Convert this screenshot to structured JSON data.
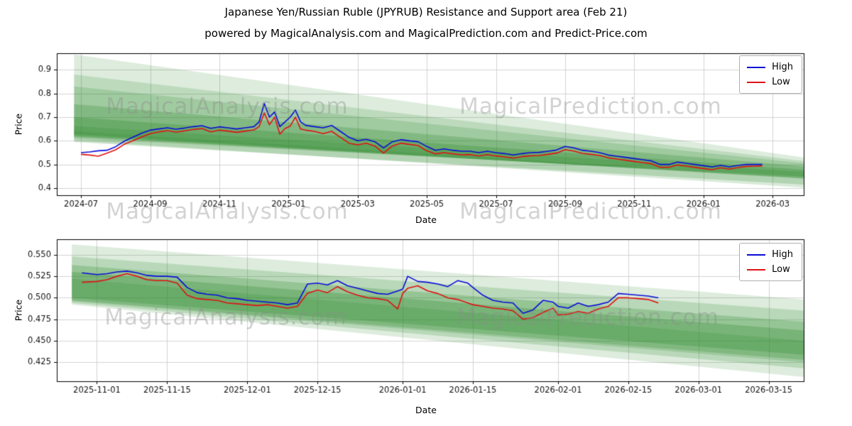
{
  "watermarks": {
    "left": "MagicalAnalysis.com",
    "right": "MagicalPrediction.com"
  },
  "colors": {
    "high": "#0b0bd8",
    "low": "#e01212",
    "band": "#2d8a2d",
    "grid": "#d3d3d3",
    "spine": "#000000"
  },
  "chart_data": [
    {
      "type": "line",
      "title": "Japanese Yen/Russian Ruble (JPYRUB) Resistance and Support area (Feb 21)",
      "subtitle": "powered by MagicalAnalysis.com and MagicalPrediction.com and Predict-Price.com",
      "xlabel": "Date",
      "ylabel": "Price",
      "legend_position": "upper right",
      "grid": true,
      "xlim": [
        -0.7,
        20.9
      ],
      "ylim": [
        0.37,
        0.97
      ],
      "xticks": [
        {
          "v": 0,
          "label": "2024-07"
        },
        {
          "v": 2,
          "label": "2024-09"
        },
        {
          "v": 4,
          "label": "2024-11"
        },
        {
          "v": 6,
          "label": "2025-01"
        },
        {
          "v": 8,
          "label": "2025-03"
        },
        {
          "v": 10,
          "label": "2025-05"
        },
        {
          "v": 12,
          "label": "2025-07"
        },
        {
          "v": 14,
          "label": "2025-09"
        },
        {
          "v": 16,
          "label": "2025-11"
        },
        {
          "v": 18,
          "label": "2026-01"
        },
        {
          "v": 20,
          "label": "2026-03"
        }
      ],
      "yticks": [
        {
          "v": 0.4,
          "label": "0.4"
        },
        {
          "v": 0.5,
          "label": "0.5"
        },
        {
          "v": 0.6,
          "label": "0.6"
        },
        {
          "v": 0.7,
          "label": "0.7"
        },
        {
          "v": 0.8,
          "label": "0.8"
        },
        {
          "v": 0.9,
          "label": "0.9"
        }
      ],
      "x": [
        0,
        0.25,
        0.5,
        0.75,
        1,
        1.25,
        1.5,
        1.75,
        2,
        2.25,
        2.5,
        2.75,
        3,
        3.25,
        3.5,
        3.75,
        4,
        4.25,
        4.5,
        4.75,
        5,
        5.15,
        5.3,
        5.45,
        5.6,
        5.75,
        5.9,
        6.05,
        6.2,
        6.35,
        6.5,
        6.75,
        7,
        7.25,
        7.5,
        7.75,
        8,
        8.25,
        8.5,
        8.75,
        9,
        9.25,
        9.5,
        9.75,
        10,
        10.25,
        10.5,
        10.75,
        11,
        11.25,
        11.5,
        11.75,
        12,
        12.25,
        12.5,
        12.75,
        13,
        13.25,
        13.5,
        13.75,
        14,
        14.25,
        14.5,
        14.75,
        15,
        15.25,
        15.5,
        15.75,
        16,
        16.25,
        16.5,
        16.75,
        17,
        17.25,
        17.5,
        17.75,
        18,
        18.25,
        18.5,
        18.75,
        19,
        19.25,
        19.5,
        19.7
      ],
      "series": [
        {
          "name": "High",
          "color": "#0b0bd8",
          "values": [
            0.55,
            0.553,
            0.558,
            0.56,
            0.575,
            0.598,
            0.615,
            0.632,
            0.645,
            0.65,
            0.655,
            0.649,
            0.654,
            0.66,
            0.664,
            0.653,
            0.659,
            0.655,
            0.65,
            0.655,
            0.66,
            0.68,
            0.758,
            0.7,
            0.722,
            0.66,
            0.68,
            0.7,
            0.73,
            0.68,
            0.665,
            0.66,
            0.655,
            0.665,
            0.64,
            0.615,
            0.6,
            0.606,
            0.596,
            0.57,
            0.596,
            0.605,
            0.6,
            0.596,
            0.576,
            0.56,
            0.566,
            0.56,
            0.556,
            0.556,
            0.55,
            0.556,
            0.55,
            0.546,
            0.54,
            0.546,
            0.55,
            0.551,
            0.556,
            0.561,
            0.576,
            0.57,
            0.56,
            0.556,
            0.55,
            0.54,
            0.535,
            0.53,
            0.525,
            0.52,
            0.515,
            0.5,
            0.5,
            0.51,
            0.505,
            0.5,
            0.495,
            0.49,
            0.496,
            0.49,
            0.496,
            0.5,
            0.5,
            0.5
          ]
        },
        {
          "name": "Low",
          "color": "#e01212",
          "values": [
            0.543,
            0.54,
            0.535,
            0.548,
            0.562,
            0.585,
            0.6,
            0.616,
            0.63,
            0.638,
            0.643,
            0.637,
            0.642,
            0.648,
            0.652,
            0.638,
            0.645,
            0.641,
            0.636,
            0.641,
            0.646,
            0.66,
            0.718,
            0.668,
            0.7,
            0.628,
            0.652,
            0.662,
            0.7,
            0.65,
            0.645,
            0.64,
            0.63,
            0.64,
            0.615,
            0.59,
            0.583,
            0.59,
            0.578,
            0.548,
            0.578,
            0.59,
            0.585,
            0.58,
            0.558,
            0.545,
            0.55,
            0.545,
            0.541,
            0.542,
            0.536,
            0.542,
            0.536,
            0.532,
            0.527,
            0.533,
            0.537,
            0.538,
            0.543,
            0.548,
            0.563,
            0.557,
            0.547,
            0.543,
            0.538,
            0.528,
            0.523,
            0.518,
            0.513,
            0.508,
            0.503,
            0.488,
            0.488,
            0.498,
            0.493,
            0.488,
            0.483,
            0.478,
            0.486,
            0.48,
            0.487,
            0.492,
            0.493,
            0.494
          ]
        }
      ],
      "bands": [
        {
          "x0": -0.2,
          "top0": 0.965,
          "bot0": 0.61,
          "x1": 20.9,
          "top1": 0.53,
          "bot1": 0.45,
          "alpha": 0.16
        },
        {
          "x0": -0.2,
          "top0": 0.88,
          "bot0": 0.615,
          "x1": 20.9,
          "top1": 0.515,
          "bot1": 0.448,
          "alpha": 0.18
        },
        {
          "x0": -0.2,
          "top0": 0.83,
          "bot0": 0.618,
          "x1": 20.9,
          "top1": 0.505,
          "bot1": 0.445,
          "alpha": 0.2
        },
        {
          "x0": -0.2,
          "top0": 0.755,
          "bot0": 0.622,
          "x1": 20.9,
          "top1": 0.492,
          "bot1": 0.443,
          "alpha": 0.26
        },
        {
          "x0": -0.2,
          "top0": 0.7,
          "bot0": 0.628,
          "x1": 20.9,
          "top1": 0.478,
          "bot1": 0.44,
          "alpha": 0.28
        },
        {
          "x0": -0.2,
          "top0": 0.662,
          "bot0": 0.595,
          "x1": 20.9,
          "top1": 0.468,
          "bot1": 0.415,
          "alpha": 0.22
        },
        {
          "x0": -0.2,
          "top0": 0.64,
          "bot0": 0.602,
          "x1": 20.9,
          "top1": 0.445,
          "bot1": 0.402,
          "alpha": 0.18
        }
      ]
    },
    {
      "type": "line",
      "title": "",
      "xlabel": "Date",
      "ylabel": "Price",
      "legend_position": "upper right",
      "grid": true,
      "xlim": [
        -8,
        141
      ],
      "ylim": [
        0.403,
        0.568
      ],
      "xticks": [
        {
          "v": 0,
          "label": "2025-11-01"
        },
        {
          "v": 14,
          "label": "2025-11-15"
        },
        {
          "v": 30,
          "label": "2025-12-01"
        },
        {
          "v": 44,
          "label": "2025-12-15"
        },
        {
          "v": 61,
          "label": "2026-01-01"
        },
        {
          "v": 75,
          "label": "2026-01-15"
        },
        {
          "v": 92,
          "label": "2026-02-01"
        },
        {
          "v": 106,
          "label": "2026-02-15"
        },
        {
          "v": 120,
          "label": "2026-03-01"
        },
        {
          "v": 134,
          "label": "2026-03-15"
        }
      ],
      "yticks": [
        {
          "v": 0.425,
          "label": "0.425"
        },
        {
          "v": 0.45,
          "label": "0.450"
        },
        {
          "v": 0.475,
          "label": "0.475"
        },
        {
          "v": 0.5,
          "label": "0.500"
        },
        {
          "v": 0.525,
          "label": "0.525"
        },
        {
          "v": 0.55,
          "label": "0.550"
        }
      ],
      "x": [
        -3,
        0,
        2,
        4,
        6,
        8,
        10,
        12,
        14,
        16,
        18,
        20,
        22,
        24,
        26,
        28,
        30,
        32,
        34,
        36,
        38,
        40,
        42,
        44,
        46,
        48,
        50,
        52,
        54,
        56,
        58,
        60,
        61,
        62,
        64,
        66,
        68,
        70,
        72,
        74,
        75,
        77,
        79,
        81,
        83,
        85,
        87,
        89,
        91,
        92,
        94,
        96,
        98,
        100,
        102,
        104,
        106,
        108,
        110,
        112
      ],
      "series": [
        {
          "name": "High",
          "color": "#0b0bd8",
          "values": [
            0.529,
            0.527,
            0.528,
            0.53,
            0.531,
            0.529,
            0.526,
            0.525,
            0.525,
            0.524,
            0.512,
            0.506,
            0.504,
            0.503,
            0.5,
            0.499,
            0.497,
            0.496,
            0.495,
            0.494,
            0.492,
            0.494,
            0.516,
            0.517,
            0.515,
            0.52,
            0.514,
            0.511,
            0.508,
            0.505,
            0.504,
            0.508,
            0.51,
            0.525,
            0.519,
            0.518,
            0.516,
            0.513,
            0.52,
            0.517,
            0.512,
            0.503,
            0.497,
            0.495,
            0.494,
            0.482,
            0.486,
            0.497,
            0.495,
            0.49,
            0.488,
            0.494,
            0.49,
            0.492,
            0.495,
            0.505,
            0.504,
            0.503,
            0.502,
            0.5
          ]
        },
        {
          "name": "Low",
          "color": "#e01212",
          "values": [
            0.518,
            0.519,
            0.521,
            0.525,
            0.528,
            0.525,
            0.521,
            0.52,
            0.52,
            0.517,
            0.503,
            0.499,
            0.498,
            0.497,
            0.494,
            0.493,
            0.492,
            0.491,
            0.492,
            0.49,
            0.488,
            0.49,
            0.505,
            0.509,
            0.506,
            0.513,
            0.507,
            0.503,
            0.5,
            0.499,
            0.497,
            0.487,
            0.505,
            0.511,
            0.514,
            0.508,
            0.505,
            0.5,
            0.498,
            0.494,
            0.492,
            0.49,
            0.488,
            0.487,
            0.485,
            0.475,
            0.477,
            0.483,
            0.488,
            0.48,
            0.481,
            0.484,
            0.482,
            0.487,
            0.49,
            0.5,
            0.5,
            0.499,
            0.498,
            0.494
          ]
        }
      ],
      "bands": [
        {
          "x0": -5,
          "top0": 0.562,
          "bot0": 0.492,
          "x1": 141,
          "top1": 0.498,
          "bot1": 0.408,
          "alpha": 0.16
        },
        {
          "x0": -5,
          "top0": 0.548,
          "bot0": 0.494,
          "x1": 141,
          "top1": 0.485,
          "bot1": 0.418,
          "alpha": 0.2
        },
        {
          "x0": -5,
          "top0": 0.538,
          "bot0": 0.497,
          "x1": 141,
          "top1": 0.472,
          "bot1": 0.428,
          "alpha": 0.26
        },
        {
          "x0": -5,
          "top0": 0.53,
          "bot0": 0.5,
          "x1": 141,
          "top1": 0.462,
          "bot1": 0.434,
          "alpha": 0.28
        },
        {
          "x0": -5,
          "top0": 0.522,
          "bot0": 0.496,
          "x1": 141,
          "top1": 0.45,
          "bot1": 0.425,
          "alpha": 0.2
        }
      ]
    }
  ]
}
